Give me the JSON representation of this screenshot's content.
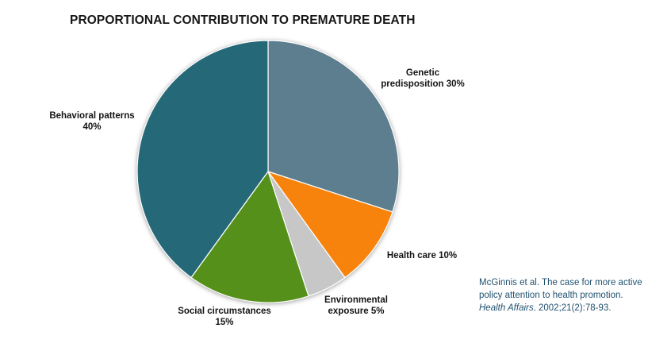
{
  "title": "PROPORTIONAL CONTRIBUTION TO PREMATURE DEATH",
  "chart_data": {
    "type": "pie",
    "title": "PROPORTIONAL CONTRIBUTION TO PREMATURE DEATH",
    "start_angle_deg": 0,
    "direction": "clockwise",
    "legend": "none",
    "data_labels": "outside",
    "slices": [
      {
        "label": "Genetic predisposition",
        "value": 30,
        "color": "#5D7E8E",
        "label_lines": [
          "Genetic",
          "predisposition 30%"
        ]
      },
      {
        "label": "Health care",
        "value": 10,
        "color": "#F8830C",
        "label_lines": [
          "Health care 10%"
        ]
      },
      {
        "label": "Environmental exposure",
        "value": 5,
        "color": "#C7C7C7",
        "label_lines": [
          "Environmental",
          "exposure 5%"
        ]
      },
      {
        "label": "Social circumstances",
        "value": 15,
        "color": "#55911A",
        "label_lines": [
          "Social circumstances",
          "15%"
        ]
      },
      {
        "label": "Behavioral patterns",
        "value": 40,
        "color": "#256878",
        "label_lines": [
          "Behavioral patterns",
          "40%"
        ]
      }
    ]
  },
  "citation": {
    "line1": "McGinnis et al. The case for more active",
    "line2": "policy attention to health promotion.",
    "line3_italic": "Health Affairs",
    "line3_rest": ". 2002;21(2):78-93.",
    "color": "#1F506E"
  }
}
